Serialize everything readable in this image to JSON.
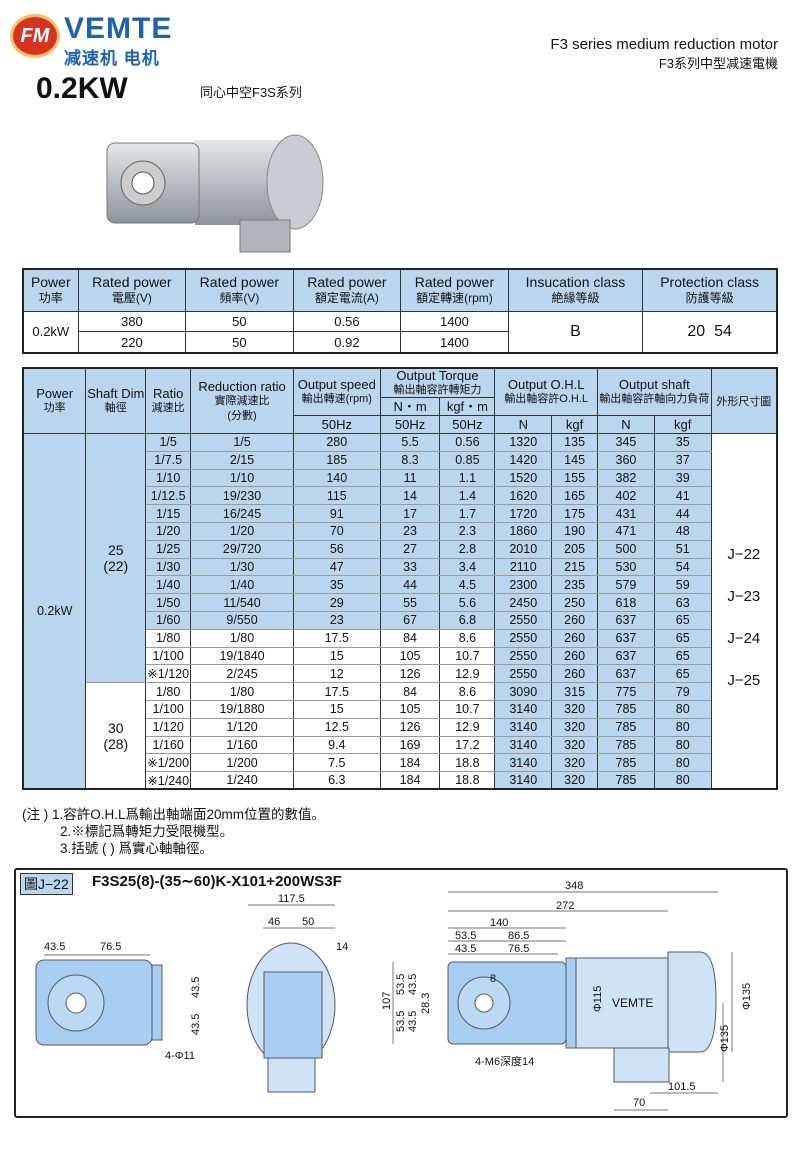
{
  "header": {
    "logo_text": "FM",
    "brand": "VEMTE",
    "brand_cn": "减速机 电机",
    "power": "0.2KW",
    "subtitle": "同心中空F3S系列",
    "series_en": "F3 series medium reduction motor",
    "series_cn": "F3系列中型减速電機"
  },
  "motor_table": {
    "headers": [
      [
        "Power",
        "功率"
      ],
      [
        "Rated power",
        "電壓(V)"
      ],
      [
        "Rated power",
        "頻率(V)"
      ],
      [
        "Rated power",
        "額定電流(A)"
      ],
      [
        "Rated power",
        "額定轉速(rpm)"
      ],
      [
        "Insucation class",
        "絶緣等級"
      ],
      [
        "Protection class",
        "防護等級"
      ]
    ],
    "power": "0.2kW",
    "rows": [
      [
        "380",
        "50",
        "0.56",
        "1400"
      ],
      [
        "220",
        "50",
        "0.92",
        "1400"
      ]
    ],
    "insulation": "B",
    "protection": "20  54"
  },
  "spec_table": {
    "headers": {
      "power": [
        "Power",
        "功率"
      ],
      "shaft": [
        "Shaft Dim",
        "軸徑"
      ],
      "ratio": [
        "Ratio",
        "減速比"
      ],
      "reduction": [
        "Reduction ratio",
        "實際減速比",
        "(分數)"
      ],
      "speed": [
        "Output speed",
        "輸出轉速(rpm)"
      ],
      "torque": [
        "Output Torque",
        "輸出軸容許轉矩力"
      ],
      "torque_nm": "N・m",
      "torque_kgf": "kgf・m",
      "ohl": [
        "Output O.H.L",
        "輸出軸容許O.H.L"
      ],
      "shaft_out": [
        "Output shaft",
        "輸出軸容許軸向力負荷"
      ],
      "dims": "外形尺寸圖",
      "hz": "50Hz",
      "n": "N",
      "kgf": "kgf"
    },
    "power": "0.2kW",
    "groups": [
      {
        "shaft": "25",
        "shaft_sub": "(22)",
        "rows": [
          [
            "1/5",
            "1/5",
            "280",
            "5.5",
            "0.56",
            "1320",
            "135",
            "345",
            "35"
          ],
          [
            "1/7.5",
            "2/15",
            "185",
            "8.3",
            "0.85",
            "1420",
            "145",
            "360",
            "37"
          ],
          [
            "1/10",
            "1/10",
            "140",
            "11",
            "1.1",
            "1520",
            "155",
            "382",
            "39"
          ],
          [
            "1/12.5",
            "19/230",
            "115",
            "14",
            "1.4",
            "1620",
            "165",
            "402",
            "41"
          ],
          [
            "1/15",
            "16/245",
            "91",
            "17",
            "1.7",
            "1720",
            "175",
            "431",
            "44"
          ],
          [
            "1/20",
            "1/20",
            "70",
            "23",
            "2.3",
            "1860",
            "190",
            "471",
            "48"
          ],
          [
            "1/25",
            "29/720",
            "56",
            "27",
            "2.8",
            "2010",
            "205",
            "500",
            "51"
          ],
          [
            "1/30",
            "1/30",
            "47",
            "33",
            "3.4",
            "2110",
            "215",
            "530",
            "54"
          ],
          [
            "1/40",
            "1/40",
            "35",
            "44",
            "4.5",
            "2300",
            "235",
            "579",
            "59"
          ],
          [
            "1/50",
            "11/540",
            "29",
            "55",
            "5.6",
            "2450",
            "250",
            "618",
            "63"
          ],
          [
            "1/60",
            "9/550",
            "23",
            "67",
            "6.8",
            "2550",
            "260",
            "637",
            "65"
          ],
          [
            "1/80",
            "1/80",
            "17.5",
            "84",
            "8.6",
            "2550",
            "260",
            "637",
            "65"
          ],
          [
            "1/100",
            "19/1840",
            "15",
            "105",
            "10.7",
            "2550",
            "260",
            "637",
            "65"
          ],
          [
            "※1/120",
            "2/245",
            "12",
            "126",
            "12.9",
            "2550",
            "260",
            "637",
            "65"
          ]
        ]
      },
      {
        "shaft": "30",
        "shaft_sub": "(28)",
        "rows": [
          [
            "1/80",
            "1/80",
            "17.5",
            "84",
            "8.6",
            "3090",
            "315",
            "775",
            "79"
          ],
          [
            "1/100",
            "19/1880",
            "15",
            "105",
            "10.7",
            "3140",
            "320",
            "785",
            "80"
          ],
          [
            "1/120",
            "1/120",
            "12.5",
            "126",
            "12.9",
            "3140",
            "320",
            "785",
            "80"
          ],
          [
            "1/160",
            "1/160",
            "9.4",
            "169",
            "17.2",
            "3140",
            "320",
            "785",
            "80"
          ],
          [
            "※1/200",
            "1/200",
            "7.5",
            "184",
            "18.8",
            "3140",
            "320",
            "785",
            "80"
          ],
          [
            "※1/240",
            "1/240",
            "6.3",
            "184",
            "18.8",
            "3140",
            "320",
            "785",
            "80"
          ]
        ]
      }
    ],
    "dim_refs": [
      "J−22",
      "J−23",
      "J−24",
      "J−25"
    ]
  },
  "notes": [
    "(注 ) 1.容許O.H.L爲輸出軸端面20mm位置的數值。",
    "2.※標記爲轉矩力受限機型。",
    "3.括號 ( ) 爲實心軸軸徑。"
  ],
  "drawing": {
    "tag": "圖J−22",
    "model": "F3S25(8)-(35∼60)K-X101+200WS3F",
    "front": {
      "w1": "43.5",
      "w2": "76.5",
      "h1": "43.5",
      "h2": "43.5",
      "holes": "4-Φ11"
    },
    "side": {
      "w": "117.5",
      "a": "46",
      "b": "50",
      "c": "14"
    },
    "main": {
      "l348": "348",
      "l272": "272",
      "l140": "140",
      "a53": "53.5",
      "a86": "86.5",
      "a43": "43.5",
      "a76": "76.5",
      "h107": "107",
      "v53a": "53.5",
      "v53b": "53.5",
      "v43a": "43.5",
      "v43b": "43.5",
      "v28": "28.3",
      "key": "8",
      "d115": "Φ115",
      "brand": "VEMTE",
      "d135a": "Φ135",
      "d135b": "Φ135",
      "tap": "4-M6深度14",
      "l101": "101.5",
      "l70": "70"
    }
  },
  "colors": {
    "cell_blue": "#b9d6ee",
    "brand_blue": "#1c64b0",
    "logo_red": "#d6341f"
  }
}
